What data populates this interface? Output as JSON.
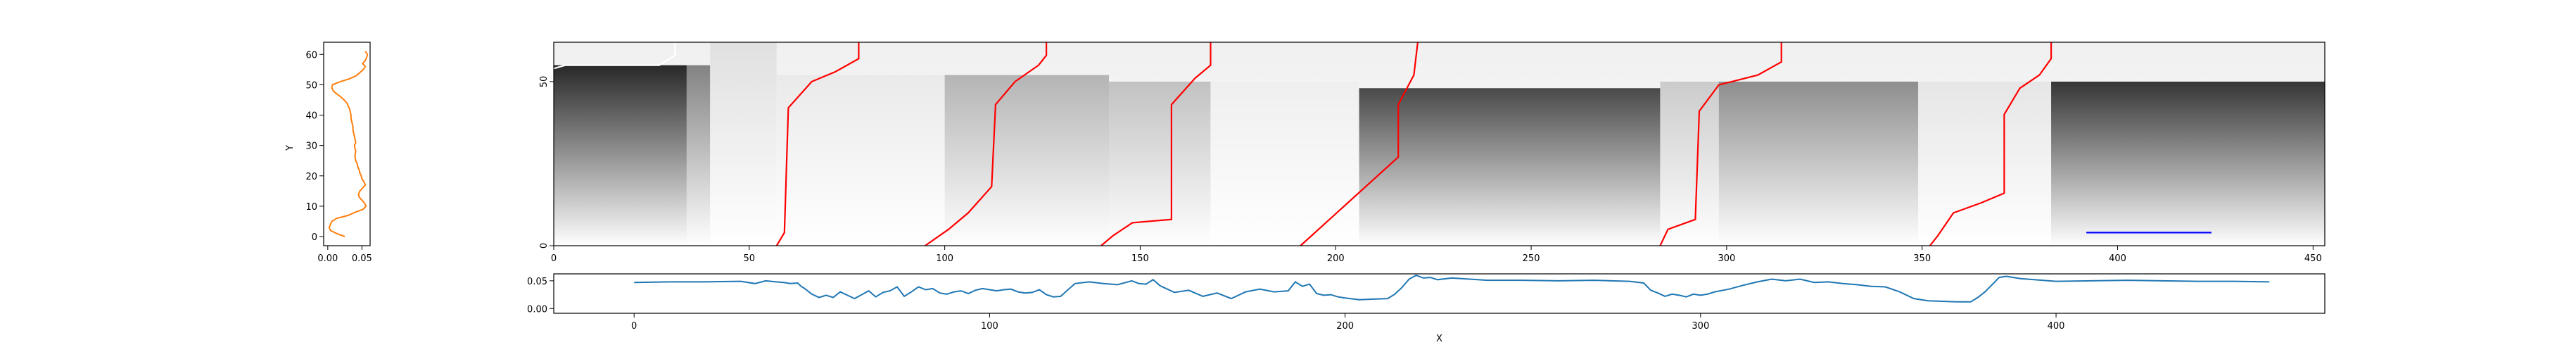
{
  "chart_data": [
    {
      "type": "line",
      "panel": "left-profile",
      "xlabel": "",
      "ylabel": "Y",
      "xlim": [
        -0.006,
        0.062
      ],
      "ylim": [
        -3,
        64
      ],
      "xticks": [
        "0.00",
        "0.05"
      ],
      "yticks": [
        "0",
        "10",
        "20",
        "30",
        "40",
        "50",
        "60"
      ],
      "color": "#ff7f0e",
      "series": [
        {
          "x": [
            0.025,
            0.013,
            0.004,
            0.002,
            0.004,
            0.006,
            0.013,
            0.03,
            0.04,
            0.052,
            0.056,
            0.054,
            0.05,
            0.046,
            0.045,
            0.047,
            0.051,
            0.055,
            0.053,
            0.05,
            0.049,
            0.047,
            0.046,
            0.044,
            0.043,
            0.041,
            0.04,
            0.04,
            0.041,
            0.04,
            0.039,
            0.041,
            0.04,
            0.039,
            0.038,
            0.037,
            0.037,
            0.036,
            0.035,
            0.034,
            0.034,
            0.033,
            0.032,
            0.03,
            0.028,
            0.024,
            0.019,
            0.013,
            0.008,
            0.006,
            0.007,
            0.018,
            0.032,
            0.042,
            0.047,
            0.052,
            0.055,
            0.051,
            0.055,
            0.057,
            0.058,
            0.055
          ],
          "y": [
            0,
            1,
            2,
            3,
            4,
            5,
            6,
            7,
            8,
            9,
            10,
            11,
            12,
            13,
            14,
            15,
            16,
            17,
            18,
            19,
            20,
            21,
            22,
            23,
            24,
            25,
            26,
            27,
            28,
            29,
            30,
            31,
            32,
            33,
            34,
            35,
            36,
            37,
            38,
            39,
            40,
            41,
            42,
            43,
            44,
            45,
            46,
            47,
            48,
            49,
            50,
            51,
            52,
            53,
            54,
            55,
            56,
            57,
            58,
            59,
            60,
            61
          ]
        }
      ]
    },
    {
      "type": "heatmap",
      "panel": "main",
      "xlabel": "",
      "ylabel": "",
      "xlim": [
        0,
        453
      ],
      "ylim": [
        0,
        62
      ],
      "xticks": [
        "0",
        "50",
        "100",
        "150",
        "200",
        "250",
        "300",
        "350",
        "400",
        "450"
      ],
      "yticks": [
        "0",
        "50"
      ],
      "colormap": "greys",
      "blocks": [
        {
          "x0": 0,
          "x1": 34,
          "y_top": 55,
          "level": 0.95
        },
        {
          "x0": 34,
          "x1": 40,
          "y_top": 55,
          "level": 0.55
        },
        {
          "x0": 40,
          "x1": 57,
          "y_top": 62,
          "level": 0.12
        },
        {
          "x0": 57,
          "x1": 100,
          "y_top": 52,
          "level": 0.1
        },
        {
          "x0": 100,
          "x1": 142,
          "y_top": 52,
          "level": 0.35
        },
        {
          "x0": 142,
          "x1": 168,
          "y_top": 50,
          "level": 0.3
        },
        {
          "x0": 168,
          "x1": 206,
          "y_top": 50,
          "level": 0.08
        },
        {
          "x0": 206,
          "x1": 283,
          "y_top": 48,
          "level": 0.92
        },
        {
          "x0": 283,
          "x1": 298,
          "y_top": 50,
          "level": 0.25
        },
        {
          "x0": 298,
          "x1": 349,
          "y_top": 50,
          "level": 0.55
        },
        {
          "x0": 349,
          "x1": 383,
          "y_top": 50,
          "level": 0.12
        },
        {
          "x0": 383,
          "x1": 453,
          "y_top": 50,
          "level": 0.98
        }
      ],
      "paths": [
        {
          "color": "#ff0000",
          "points": [
            [
              57,
              0
            ],
            [
              59,
              4
            ],
            [
              60,
              42
            ],
            [
              66,
              50
            ],
            [
              72,
              53
            ],
            [
              78,
              57
            ],
            [
              78,
              62
            ]
          ]
        },
        {
          "color": "#ff0000",
          "points": [
            [
              95,
              0
            ],
            [
              101,
              5
            ],
            [
              106,
              10
            ],
            [
              112,
              18
            ],
            [
              113,
              43
            ],
            [
              118,
              50
            ],
            [
              124,
              55
            ],
            [
              126,
              58
            ],
            [
              126,
              62
            ]
          ]
        },
        {
          "color": "#ff0000",
          "points": [
            [
              140,
              0
            ],
            [
              143,
              3
            ],
            [
              148,
              7
            ],
            [
              158,
              8
            ],
            [
              158,
              43
            ],
            [
              164,
              51
            ],
            [
              168,
              55
            ],
            [
              168,
              62
            ]
          ]
        },
        {
          "color": "#ff0000",
          "points": [
            [
              191,
              0
            ],
            [
              216,
              27
            ],
            [
              216,
              43
            ],
            [
              220,
              52
            ],
            [
              221,
              62
            ]
          ]
        },
        {
          "color": "#ff0000",
          "points": [
            [
              283,
              0
            ],
            [
              285,
              5
            ],
            [
              292,
              8
            ],
            [
              293,
              41
            ],
            [
              298,
              49
            ],
            [
              308,
              52
            ],
            [
              314,
              56
            ],
            [
              314,
              62
            ]
          ]
        },
        {
          "color": "#ff0000",
          "points": [
            [
              352,
              0
            ],
            [
              354,
              3
            ],
            [
              358,
              10
            ],
            [
              365,
              13
            ],
            [
              371,
              16
            ],
            [
              371,
              40
            ],
            [
              375,
              48
            ],
            [
              380,
              52
            ],
            [
              383,
              57
            ],
            [
              383,
              62
            ]
          ]
        },
        {
          "color": "#ffffff",
          "points": [
            [
              0,
              54
            ],
            [
              3,
              55
            ],
            [
              27,
              55
            ],
            [
              31,
              58
            ],
            [
              31,
              62
            ]
          ]
        },
        {
          "color": "#0000ff",
          "points": [
            [
              392,
              4
            ],
            [
              424,
              4
            ]
          ]
        }
      ]
    },
    {
      "type": "line",
      "panel": "bottom-profile",
      "xlabel": "X",
      "ylabel": "",
      "xlim": [
        -22.6,
        475.6
      ],
      "ylim": [
        -0.0085,
        0.0625
      ],
      "xticks": [
        "0",
        "100",
        "200",
        "300",
        "400"
      ],
      "yticks": [
        "0.00",
        "0.05"
      ],
      "color": "#1f77b4",
      "series": [
        {
          "x": [
            0,
            10,
            20,
            30,
            34,
            37,
            40,
            42,
            44,
            46,
            47,
            48,
            50,
            52,
            54,
            56,
            58,
            60,
            62,
            64,
            66,
            68,
            70,
            72,
            74,
            76,
            78,
            80,
            82,
            84,
            86,
            88,
            90,
            92,
            94,
            96,
            98,
            100,
            102,
            104,
            106,
            108,
            110,
            112,
            114,
            116,
            118,
            120,
            124,
            128,
            132,
            136,
            140,
            142,
            144,
            146,
            148,
            150,
            152,
            156,
            160,
            164,
            168,
            172,
            176,
            180,
            184,
            186,
            188,
            190,
            192,
            194,
            196,
            198,
            200,
            204,
            208,
            212,
            214,
            216,
            218,
            220,
            222,
            224,
            226,
            230,
            240,
            250,
            260,
            270,
            280,
            284,
            286,
            288,
            290,
            292,
            294,
            296,
            298,
            300,
            302,
            304,
            308,
            312,
            316,
            320,
            324,
            328,
            332,
            336,
            340,
            344,
            348,
            352,
            356,
            360,
            364,
            368,
            372,
            376,
            378,
            380,
            382,
            384,
            386,
            390,
            400,
            410,
            420,
            430,
            440,
            450,
            460
          ],
          "y": [
            0.047,
            0.048,
            0.048,
            0.049,
            0.045,
            0.05,
            0.048,
            0.047,
            0.045,
            0.046,
            0.04,
            0.036,
            0.026,
            0.02,
            0.024,
            0.02,
            0.03,
            0.024,
            0.018,
            0.025,
            0.032,
            0.021,
            0.029,
            0.032,
            0.039,
            0.022,
            0.03,
            0.039,
            0.034,
            0.036,
            0.028,
            0.026,
            0.03,
            0.032,
            0.027,
            0.033,
            0.036,
            0.034,
            0.032,
            0.034,
            0.035,
            0.03,
            0.028,
            0.029,
            0.034,
            0.025,
            0.021,
            0.022,
            0.045,
            0.048,
            0.045,
            0.043,
            0.05,
            0.045,
            0.044,
            0.052,
            0.041,
            0.035,
            0.029,
            0.033,
            0.022,
            0.028,
            0.018,
            0.03,
            0.035,
            0.03,
            0.032,
            0.048,
            0.04,
            0.044,
            0.027,
            0.024,
            0.025,
            0.021,
            0.019,
            0.016,
            0.017,
            0.018,
            0.026,
            0.038,
            0.053,
            0.06,
            0.055,
            0.056,
            0.052,
            0.055,
            0.051,
            0.051,
            0.05,
            0.051,
            0.049,
            0.046,
            0.033,
            0.028,
            0.022,
            0.026,
            0.024,
            0.021,
            0.026,
            0.024,
            0.026,
            0.03,
            0.035,
            0.042,
            0.048,
            0.053,
            0.05,
            0.053,
            0.047,
            0.048,
            0.045,
            0.043,
            0.04,
            0.039,
            0.03,
            0.018,
            0.014,
            0.013,
            0.012,
            0.012,
            0.02,
            0.03,
            0.043,
            0.056,
            0.058,
            0.054,
            0.049,
            0.05,
            0.051,
            0.05,
            0.049,
            0.049,
            0.048
          ]
        }
      ]
    }
  ]
}
